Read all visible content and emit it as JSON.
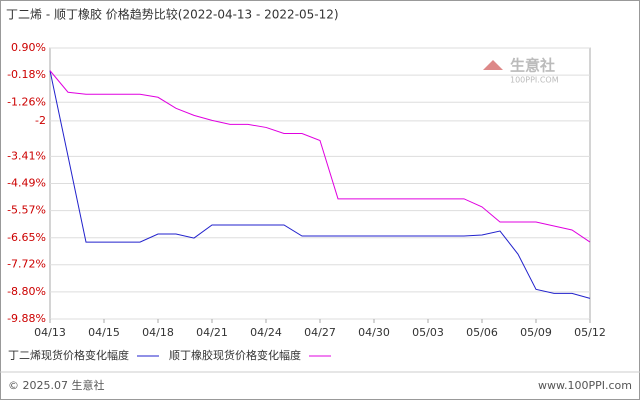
{
  "chart_data": {
    "type": "line",
    "title": "丁二烯 - 顺丁橡胶 价格趋势比较(2022-04-13 - 2022-05-12)",
    "categories": [
      "04/13",
      null,
      null,
      "04/15",
      null,
      null,
      "04/18",
      null,
      null,
      "04/21",
      null,
      null,
      "04/24",
      null,
      null,
      "04/27",
      null,
      null,
      "04/30",
      null,
      null,
      "05/03",
      null,
      null,
      "05/06",
      null,
      null,
      "05/09",
      null,
      null,
      "05/12"
    ],
    "series": [
      {
        "name": "丁二烯现货价格变化幅度",
        "color": "#2222cc",
        "values": [
          0,
          -3.4,
          -6.82,
          -6.82,
          -6.82,
          -6.82,
          -6.5,
          -6.5,
          -6.66,
          -6.14,
          -6.14,
          -6.14,
          -6.14,
          -6.14,
          -6.58,
          -6.58,
          -6.58,
          -6.58,
          -6.58,
          -6.58,
          -6.58,
          -6.58,
          -6.58,
          -6.58,
          -6.54,
          -6.38,
          -7.3,
          -8.7,
          -8.86,
          -8.86,
          -9.06
        ]
      },
      {
        "name": "顺丁橡胶现货价格变化幅度",
        "color": "#e000e0",
        "values": [
          0,
          -0.86,
          -0.94,
          -0.94,
          -0.94,
          -0.94,
          -1.06,
          -1.5,
          -1.78,
          -1.98,
          -2.14,
          -2.14,
          -2.26,
          -2.5,
          -2.5,
          -2.78,
          -5.1,
          -5.1,
          -5.1,
          -5.1,
          -5.1,
          -5.1,
          -5.1,
          -5.1,
          -5.42,
          -6.02,
          -6.02,
          -6.02,
          -6.18,
          -6.34,
          -6.82
        ]
      }
    ],
    "ylim": [
      -9.88,
      0.9
    ],
    "yticks": [
      {
        "value": 0.9,
        "label": "0.90%"
      },
      {
        "value": -0.18,
        "label": "-0.18%"
      },
      {
        "value": -1.26,
        "label": "-1.26%"
      },
      -2,
      {
        "value": -3.41,
        "label": "-3.41%"
      },
      {
        "value": -4.49,
        "label": "-4.49%"
      },
      {
        "value": -5.57,
        "label": "-5.57%"
      },
      {
        "value": -6.65,
        "label": "-6.65%"
      },
      {
        "value": -7.72,
        "label": "-7.72%"
      },
      {
        "value": -8.8,
        "label": "-8.80%"
      },
      {
        "value": -9.88,
        "label": "-9.88%"
      }
    ],
    "grid": true,
    "watermark": {
      "name": "生意社",
      "url": "100PPI.COM"
    },
    "footer": {
      "left": "© 2025.07 生意社",
      "right": "www.100PPI.com"
    }
  }
}
